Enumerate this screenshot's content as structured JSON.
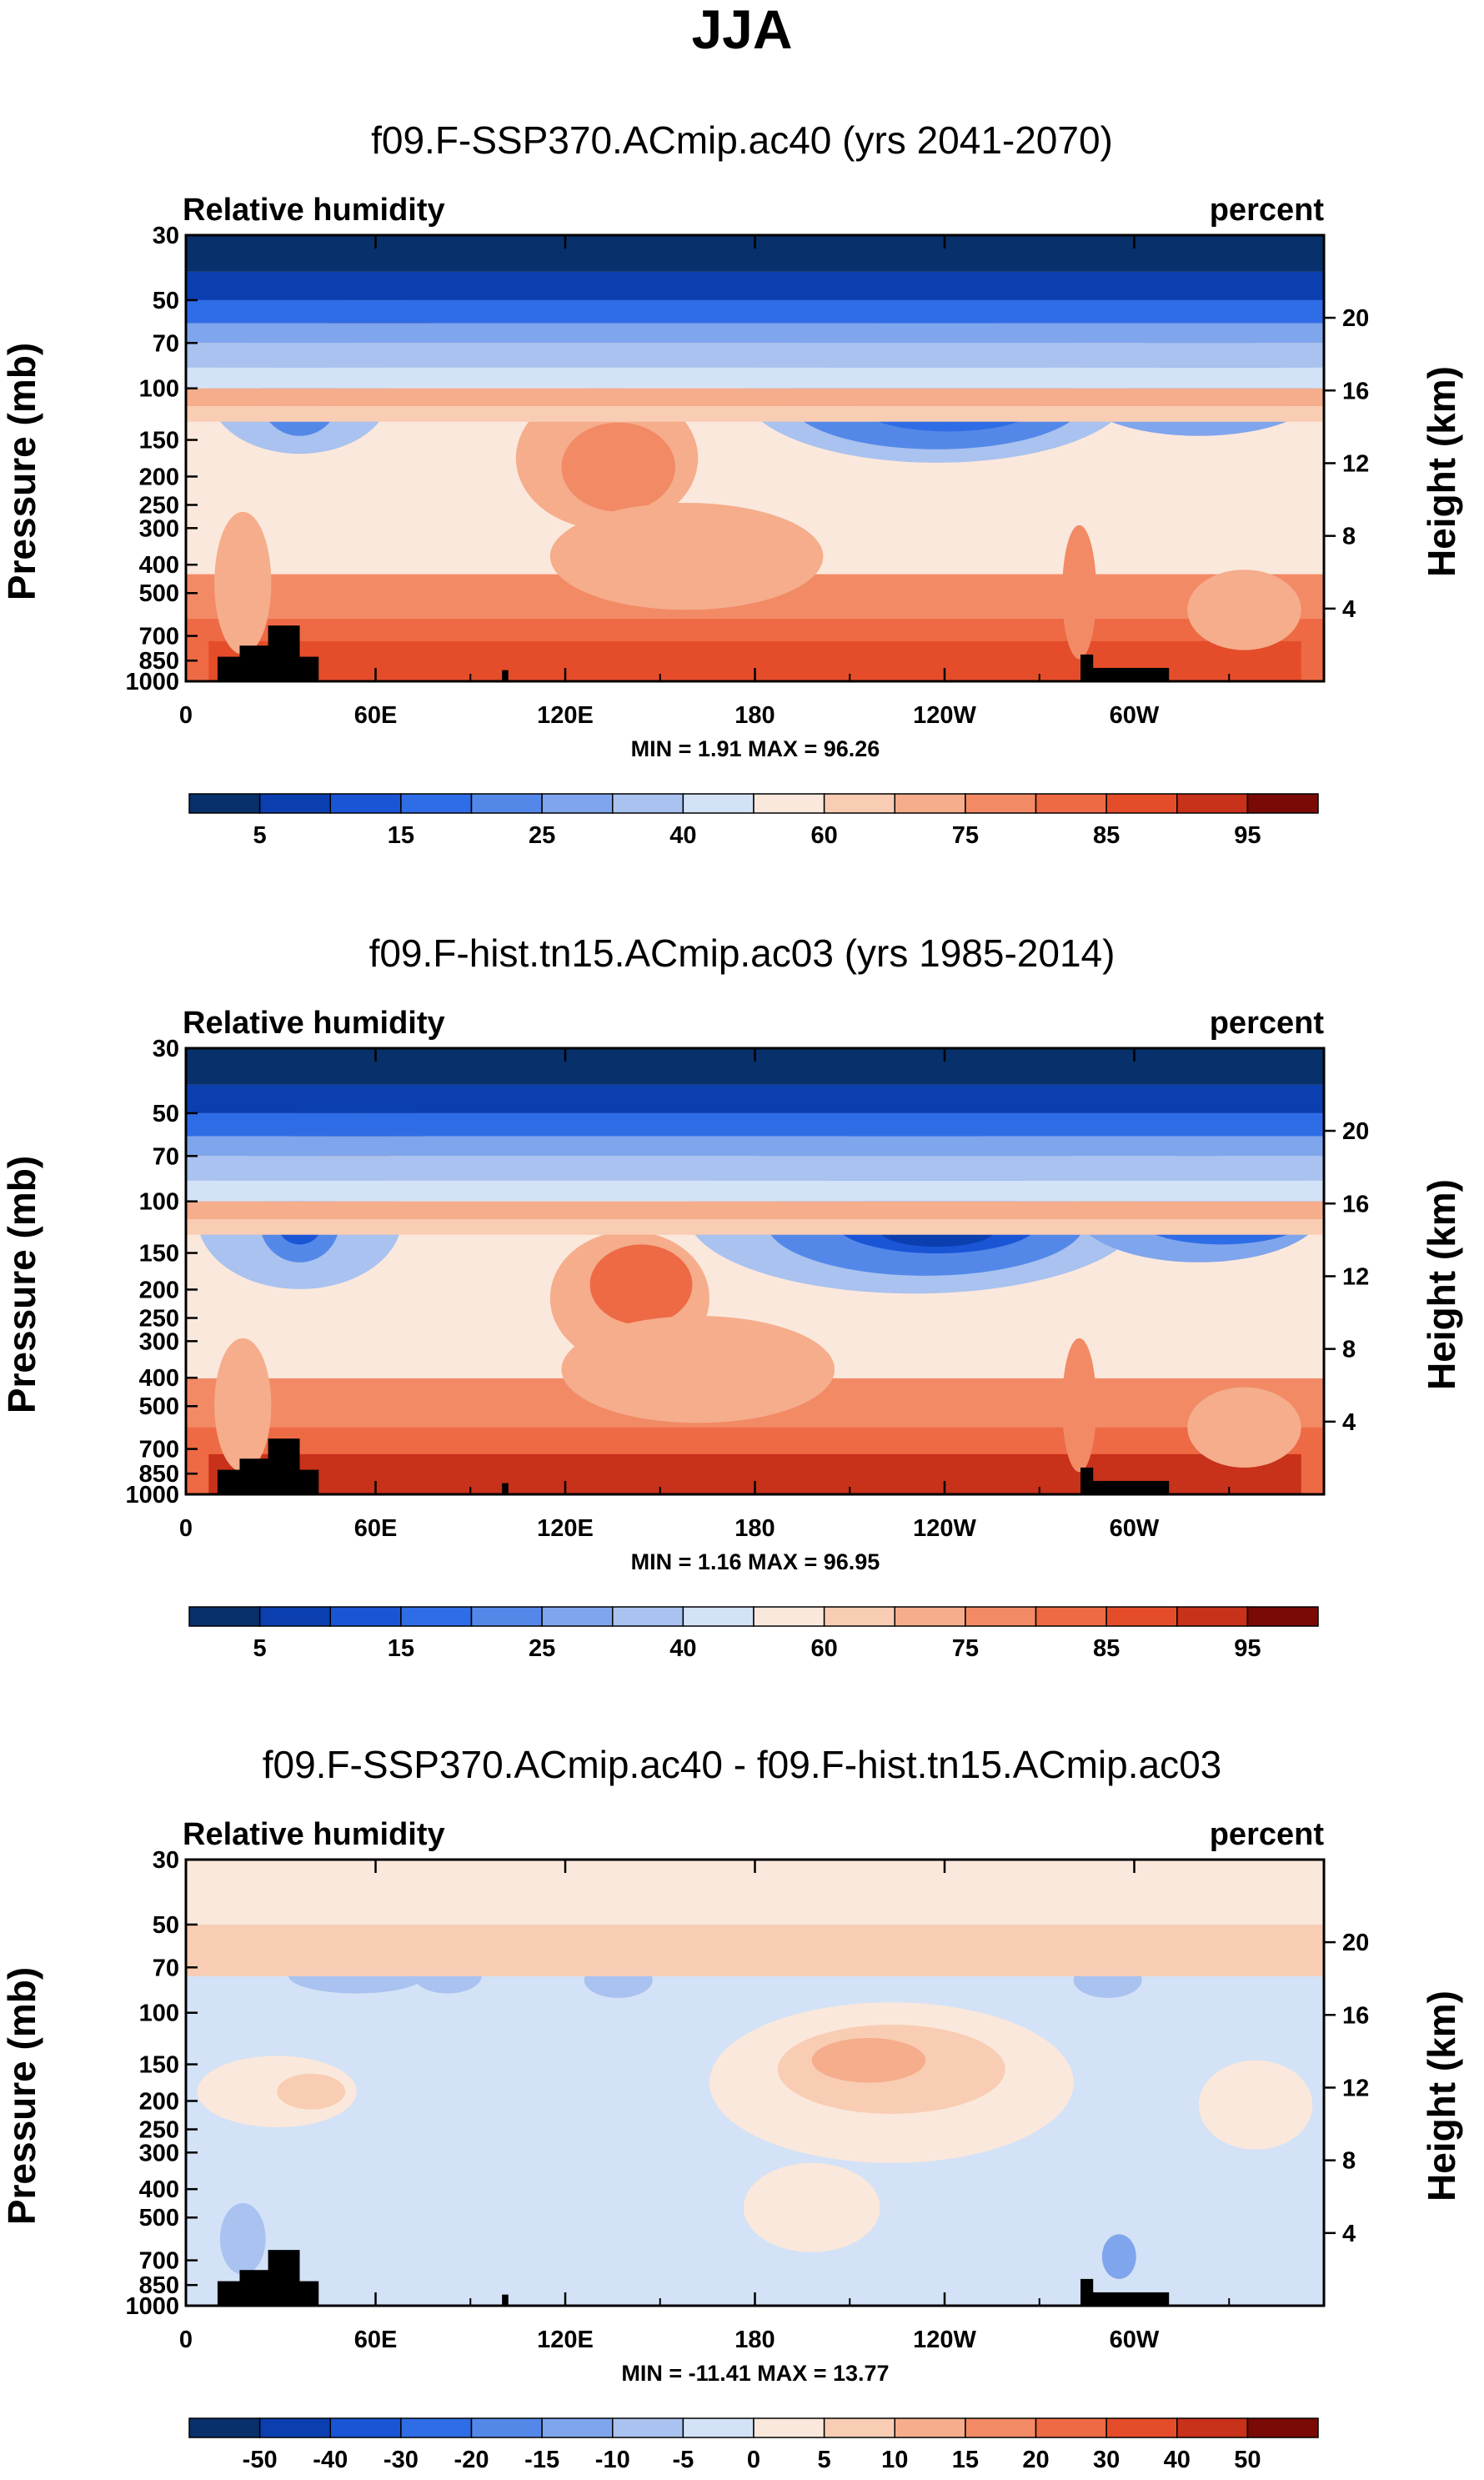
{
  "figure": {
    "title": "JJA",
    "colors": {
      "rh_levels": [
        "#08306b",
        "#0b3fb0",
        "#1a55d6",
        "#2f6de6",
        "#5488e8",
        "#7fa5ec",
        "#a9c2ef",
        "#d3e2f6",
        "#fbe8dc",
        "#f8cdb3",
        "#f5ad8c",
        "#f28a66",
        "#ee6a44",
        "#e54d2a",
        "#c8311a",
        "#a21a10",
        "#7a0a06"
      ],
      "land": "#000000",
      "background": "#ffffff"
    }
  },
  "chart_data": [
    {
      "type": "heatmap",
      "title": "f09.F-SSP370.ACmip.ac40 (yrs 2041-2070)",
      "left_label": "Relative humidity",
      "right_label": "percent",
      "ylabel": "Pressure (mb)",
      "ylabel_right": "Height (km)",
      "xlabel": "",
      "x_ticks": [
        "0",
        "60E",
        "120E",
        "180",
        "120W",
        "60W"
      ],
      "x_tick_values": [
        0,
        60,
        120,
        180,
        240,
        300
      ],
      "xlim": [
        0,
        360
      ],
      "y_ticks": [
        "30",
        "50",
        "70",
        "100",
        "150",
        "200",
        "250",
        "300",
        "400",
        "500",
        "700",
        "850",
        "1000"
      ],
      "y_tick_values": [
        30,
        50,
        70,
        100,
        150,
        200,
        250,
        300,
        400,
        500,
        700,
        850,
        1000
      ],
      "ylim": [
        1000,
        30
      ],
      "y_right_ticks": [
        "20",
        "16",
        "12",
        "8",
        "4"
      ],
      "y_right_tick_values": [
        20,
        16,
        12,
        8,
        4
      ],
      "stats": "MIN =   1.91  MAX =  96.26",
      "min": 1.91,
      "max": 96.26,
      "colorbar_labels": [
        "5",
        "15",
        "25",
        "40",
        "60",
        "75",
        "85",
        "95"
      ],
      "colorbar_levels": [
        5,
        10,
        15,
        20,
        25,
        30,
        40,
        50,
        60,
        65,
        75,
        80,
        85,
        90,
        95
      ]
    },
    {
      "type": "heatmap",
      "title": "f09.F-hist.tn15.ACmip.ac03 (yrs 1985-2014)",
      "left_label": "Relative humidity",
      "right_label": "percent",
      "ylabel": "Pressure (mb)",
      "ylabel_right": "Height (km)",
      "xlabel": "",
      "x_ticks": [
        "0",
        "60E",
        "120E",
        "180",
        "120W",
        "60W"
      ],
      "x_tick_values": [
        0,
        60,
        120,
        180,
        240,
        300
      ],
      "xlim": [
        0,
        360
      ],
      "y_ticks": [
        "30",
        "50",
        "70",
        "100",
        "150",
        "200",
        "250",
        "300",
        "400",
        "500",
        "700",
        "850",
        "1000"
      ],
      "y_tick_values": [
        30,
        50,
        70,
        100,
        150,
        200,
        250,
        300,
        400,
        500,
        700,
        850,
        1000
      ],
      "ylim": [
        1000,
        30
      ],
      "y_right_ticks": [
        "20",
        "16",
        "12",
        "8",
        "4"
      ],
      "y_right_tick_values": [
        20,
        16,
        12,
        8,
        4
      ],
      "stats": "MIN =   1.16  MAX =  96.95",
      "min": 1.16,
      "max": 96.95,
      "colorbar_labels": [
        "5",
        "15",
        "25",
        "40",
        "60",
        "75",
        "85",
        "95"
      ],
      "colorbar_levels": [
        5,
        10,
        15,
        20,
        25,
        30,
        40,
        50,
        60,
        65,
        75,
        80,
        85,
        90,
        95
      ]
    },
    {
      "type": "heatmap",
      "title": "f09.F-SSP370.ACmip.ac40 - f09.F-hist.tn15.ACmip.ac03",
      "left_label": "Relative humidity",
      "right_label": "percent",
      "ylabel": "Pressure (mb)",
      "ylabel_right": "Height (km)",
      "xlabel": "",
      "x_ticks": [
        "0",
        "60E",
        "120E",
        "180",
        "120W",
        "60W"
      ],
      "x_tick_values": [
        0,
        60,
        120,
        180,
        240,
        300
      ],
      "xlim": [
        0,
        360
      ],
      "y_ticks": [
        "30",
        "50",
        "70",
        "100",
        "150",
        "200",
        "250",
        "300",
        "400",
        "500",
        "700",
        "850",
        "1000"
      ],
      "y_tick_values": [
        30,
        50,
        70,
        100,
        150,
        200,
        250,
        300,
        400,
        500,
        700,
        850,
        1000
      ],
      "ylim": [
        1000,
        30
      ],
      "y_right_ticks": [
        "20",
        "16",
        "12",
        "8",
        "4"
      ],
      "y_right_tick_values": [
        20,
        16,
        12,
        8,
        4
      ],
      "stats": "MIN = -11.41  MAX =  13.77",
      "min": -11.41,
      "max": 13.77,
      "colorbar_labels": [
        "-50",
        "-40",
        "-30",
        "-20",
        "-15",
        "-10",
        "-5",
        "0",
        "5",
        "10",
        "15",
        "20",
        "30",
        "40",
        "50"
      ],
      "colorbar_levels": [
        -50,
        -40,
        -30,
        -20,
        -15,
        -10,
        -5,
        0,
        5,
        10,
        15,
        20,
        30,
        40,
        50
      ]
    }
  ]
}
